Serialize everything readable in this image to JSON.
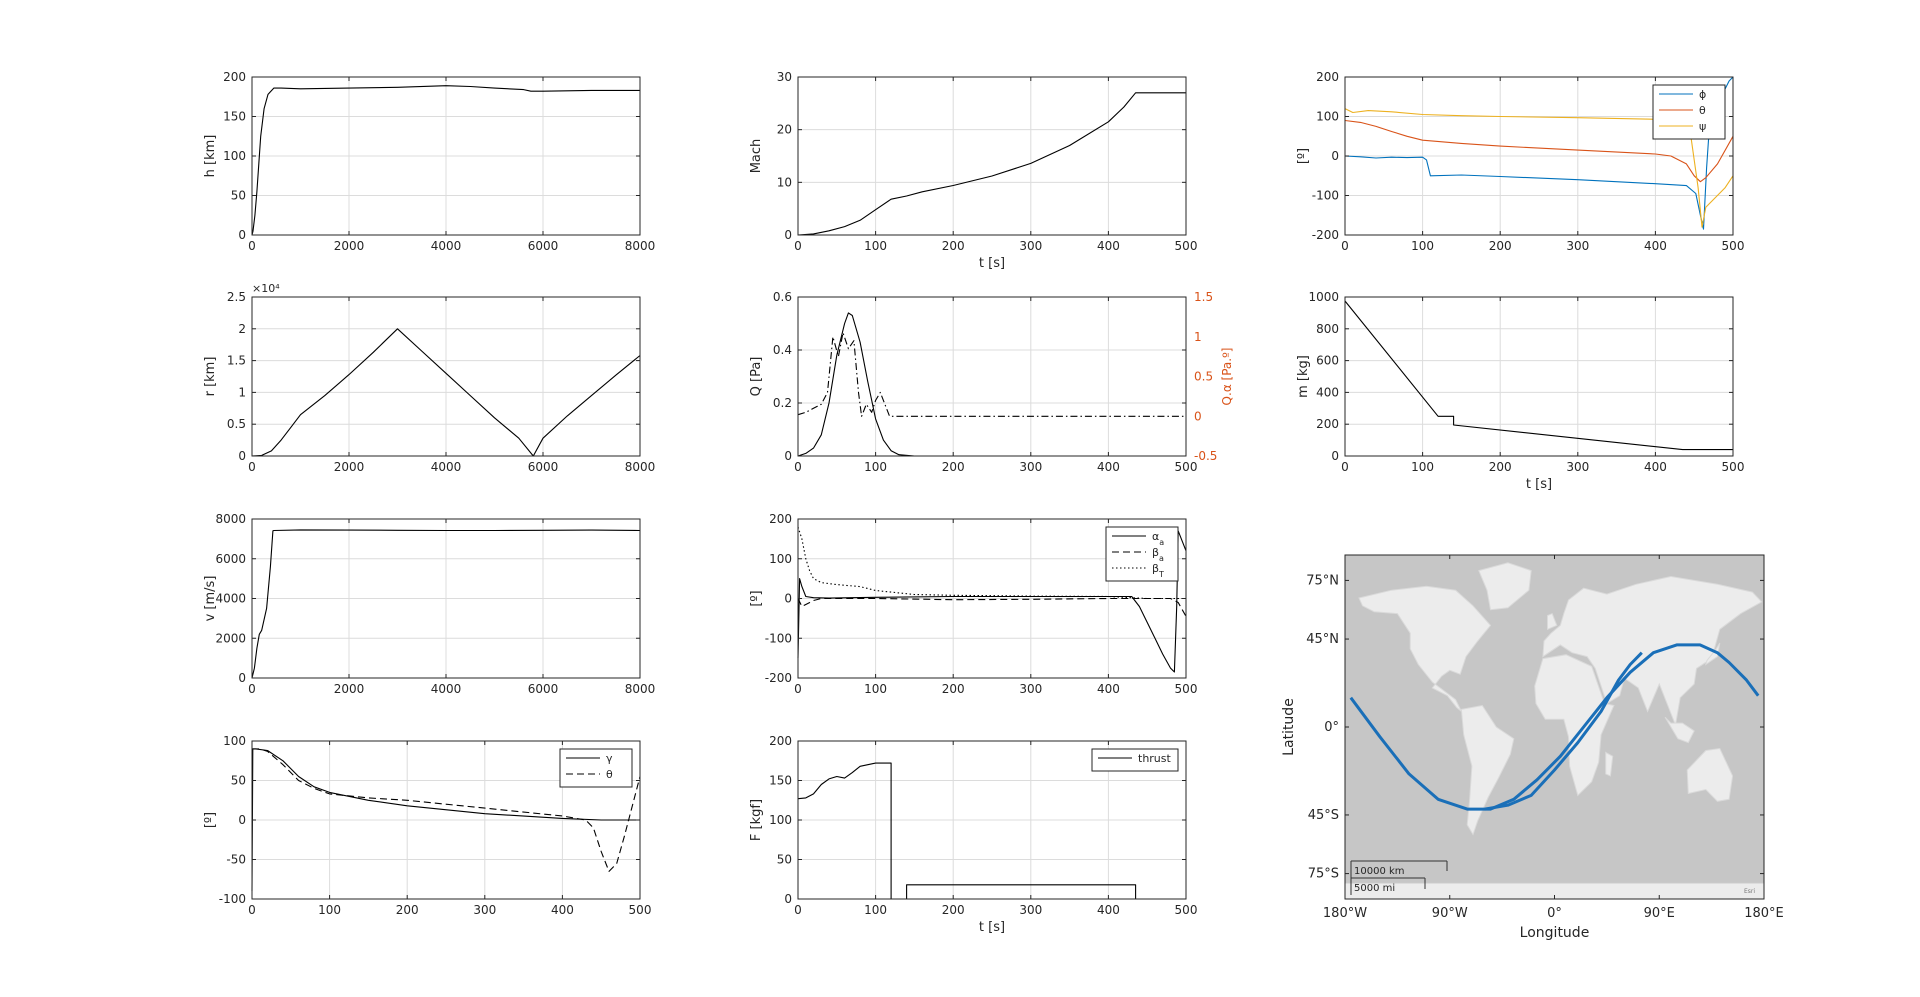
{
  "colors": {
    "axis": "#262626",
    "grid": "#dcdcdc",
    "line": "#000000",
    "blue": "#0072BD",
    "orange": "#D95319",
    "yellow": "#EDB120",
    "map_bg": "#c6c6c6",
    "map_land": "#ececec",
    "map_track": "#1a6fb8"
  },
  "chart_data": [
    {
      "id": "h",
      "type": "line",
      "ylabel": "h [km]",
      "xlabel": "",
      "xlim": [
        0,
        8000
      ],
      "ylim": [
        0,
        200
      ],
      "xticks": [
        0,
        2000,
        4000,
        6000,
        8000
      ],
      "yticks": [
        0,
        50,
        100,
        150,
        200
      ],
      "grid": true,
      "series": [
        {
          "style": "solid",
          "color": "#000000",
          "x": [
            0,
            20,
            60,
            100,
            140,
            180,
            250,
            330,
            450,
            600,
            1000,
            2000,
            3000,
            4000,
            4500,
            5000,
            5600,
            5750,
            6000,
            7000,
            8000
          ],
          "y": [
            0,
            5,
            25,
            55,
            90,
            125,
            160,
            178,
            186,
            186,
            185,
            186,
            187,
            189,
            188,
            186,
            184,
            182,
            182,
            183,
            183
          ]
        }
      ]
    },
    {
      "id": "mach",
      "type": "line",
      "ylabel": "Mach",
      "xlabel": "t [s]",
      "xlim": [
        0,
        500
      ],
      "ylim": [
        0,
        30
      ],
      "xticks": [
        0,
        100,
        200,
        300,
        400,
        500
      ],
      "yticks": [
        0,
        10,
        20,
        30
      ],
      "grid": true,
      "series": [
        {
          "style": "solid",
          "color": "#000000",
          "x": [
            0,
            20,
            40,
            60,
            80,
            100,
            120,
            140,
            160,
            200,
            250,
            300,
            350,
            400,
            420,
            435,
            440,
            500
          ],
          "y": [
            0,
            0.2,
            0.8,
            1.6,
            2.8,
            4.8,
            6.8,
            7.4,
            8.2,
            9.4,
            11.2,
            13.6,
            17,
            21.5,
            24.3,
            27,
            27,
            27
          ]
        }
      ]
    },
    {
      "id": "euler",
      "type": "line",
      "ylabel": "[º]",
      "xlabel": "",
      "xlim": [
        0,
        500
      ],
      "ylim": [
        -200,
        200
      ],
      "xticks": [
        0,
        100,
        200,
        300,
        400,
        500
      ],
      "yticks": [
        -200,
        -100,
        0,
        100,
        200
      ],
      "grid": true,
      "legend": {
        "position": "top-right",
        "entries": [
          "ϕ",
          "θ",
          "ψ"
        ]
      },
      "series": [
        {
          "name": "ϕ",
          "style": "solid",
          "color": "#0072BD",
          "x": [
            0,
            20,
            40,
            60,
            80,
            100,
            105,
            110,
            150,
            200,
            300,
            400,
            440,
            452,
            458,
            462,
            466,
            472,
            490,
            495,
            500
          ],
          "y": [
            0,
            -2,
            -5,
            -3,
            -4,
            -3,
            -10,
            -50,
            -48,
            -52,
            -60,
            -70,
            -75,
            -95,
            -150,
            -185,
            -30,
            145,
            170,
            190,
            200
          ]
        },
        {
          "name": "θ",
          "style": "solid",
          "color": "#D95319",
          "x": [
            0,
            20,
            40,
            60,
            80,
            100,
            150,
            200,
            300,
            400,
            420,
            440,
            450,
            458,
            465,
            480,
            500
          ],
          "y": [
            90,
            85,
            75,
            62,
            50,
            40,
            32,
            25,
            15,
            5,
            0,
            -20,
            -50,
            -65,
            -55,
            -20,
            50
          ]
        },
        {
          "name": "ψ",
          "style": "solid",
          "color": "#EDB120",
          "x": [
            0,
            10,
            30,
            60,
            100,
            150,
            200,
            300,
            400,
            430,
            445,
            455,
            460,
            465,
            475,
            490,
            500
          ],
          "y": [
            120,
            110,
            115,
            112,
            105,
            102,
            100,
            97,
            93,
            90,
            60,
            -80,
            -180,
            -130,
            -110,
            -80,
            -50
          ]
        }
      ]
    },
    {
      "id": "r",
      "type": "line",
      "ylabel": "r [km]",
      "xlabel": "",
      "exponent_label": "×10⁴",
      "xlim": [
        0,
        8000
      ],
      "ylim": [
        0,
        25000
      ],
      "xticks": [
        0,
        2000,
        4000,
        6000,
        8000
      ],
      "yticks": [
        0,
        5000,
        10000,
        15000,
        20000,
        25000
      ],
      "ytick_labels": [
        "0",
        "0.5",
        "1",
        "1.5",
        "2",
        "2.5"
      ],
      "grid": true,
      "series": [
        {
          "style": "solid",
          "color": "#000000",
          "x": [
            0,
            200,
            400,
            600,
            800,
            1000,
            1500,
            2000,
            2500,
            3000,
            3500,
            4000,
            4500,
            5000,
            5500,
            5800,
            6000,
            6500,
            7000,
            7500,
            8000
          ],
          "y": [
            0,
            100,
            800,
            2500,
            4500,
            6500,
            9500,
            12800,
            16300,
            20000,
            16500,
            13000,
            9500,
            6000,
            2800,
            0,
            2800,
            6300,
            9500,
            12700,
            15800
          ]
        }
      ]
    },
    {
      "id": "q",
      "type": "line",
      "ylabel": "Q [Pa]",
      "ylabel_right": "Q.α [Pa.º]",
      "xlabel": "",
      "xlim": [
        0,
        500
      ],
      "ylim": [
        0,
        0.6
      ],
      "ylim_right": [
        -0.5,
        1.5
      ],
      "xticks": [
        0,
        100,
        200,
        300,
        400,
        500
      ],
      "yticks": [
        0,
        0.2,
        0.4,
        0.6
      ],
      "yticks_right": [
        -0.5,
        0,
        0.5,
        1,
        1.5
      ],
      "grid": true,
      "series": [
        {
          "style": "solid",
          "axis": "left",
          "color": "#000000",
          "x": [
            0,
            10,
            20,
            30,
            40,
            50,
            60,
            65,
            70,
            80,
            90,
            100,
            110,
            120,
            130,
            150,
            500
          ],
          "y": [
            0,
            0.01,
            0.03,
            0.08,
            0.2,
            0.38,
            0.5,
            0.54,
            0.53,
            0.43,
            0.28,
            0.14,
            0.06,
            0.02,
            0.005,
            0,
            0
          ]
        },
        {
          "style": "dashdot",
          "axis": "right",
          "color": "#000000",
          "x": [
            0,
            10,
            20,
            30,
            38,
            45,
            52,
            58,
            65,
            72,
            78,
            82,
            88,
            95,
            100,
            106,
            112,
            118,
            125,
            500
          ],
          "y": [
            0.02,
            0.05,
            0.1,
            0.15,
            0.3,
            1.0,
            0.75,
            1.05,
            0.85,
            0.95,
            0.3,
            0.0,
            0.15,
            0.05,
            0.2,
            0.3,
            0.15,
            0.0,
            0.0,
            0.0
          ]
        }
      ]
    },
    {
      "id": "m",
      "type": "line",
      "ylabel": "m [kg]",
      "xlabel": "t [s]",
      "xlim": [
        0,
        500
      ],
      "ylim": [
        0,
        1000
      ],
      "xticks": [
        0,
        100,
        200,
        300,
        400,
        500
      ],
      "yticks": [
        0,
        200,
        400,
        600,
        800,
        1000
      ],
      "grid": true,
      "series": [
        {
          "style": "solid",
          "color": "#000000",
          "x": [
            0,
            120,
            140,
            140,
            435,
            440,
            500
          ],
          "y": [
            975,
            250,
            250,
            195,
            40,
            40,
            40
          ]
        }
      ]
    },
    {
      "id": "v",
      "type": "line",
      "ylabel": "v [m/s]",
      "xlabel": "",
      "xlim": [
        0,
        8000
      ],
      "ylim": [
        0,
        8000
      ],
      "xticks": [
        0,
        2000,
        4000,
        6000,
        8000
      ],
      "yticks": [
        0,
        2000,
        4000,
        6000,
        8000
      ],
      "grid": true,
      "series": [
        {
          "style": "solid",
          "color": "#000000",
          "x": [
            0,
            50,
            100,
            150,
            200,
            300,
            380,
            430,
            450,
            1000,
            2000,
            3000,
            4000,
            5000,
            6000,
            7000,
            8000
          ],
          "y": [
            0,
            500,
            1500,
            2200,
            2400,
            3500,
            5600,
            7400,
            7420,
            7450,
            7440,
            7430,
            7420,
            7420,
            7430,
            7440,
            7420
          ]
        }
      ]
    },
    {
      "id": "angles",
      "type": "line",
      "ylabel": "[º]",
      "xlabel": "",
      "xlim": [
        0,
        500
      ],
      "ylim": [
        -200,
        200
      ],
      "xticks": [
        0,
        100,
        200,
        300,
        400,
        500
      ],
      "yticks": [
        -200,
        -100,
        0,
        100,
        200
      ],
      "grid": true,
      "legend": {
        "position": "top-right",
        "entries": [
          "αa",
          "βa",
          "βT"
        ]
      },
      "series": [
        {
          "name": "αa",
          "style": "solid",
          "color": "#000000",
          "x": [
            0,
            2,
            5,
            10,
            20,
            40,
            100,
            200,
            300,
            400,
            430,
            440,
            450,
            460,
            470,
            480,
            485,
            488,
            490,
            500
          ],
          "y": [
            -150,
            50,
            30,
            5,
            2,
            1,
            3,
            5,
            5,
            5,
            5,
            -20,
            -60,
            -100,
            -140,
            -175,
            -185,
            -20,
            170,
            120
          ]
        },
        {
          "name": "βa",
          "style": "dashed",
          "color": "#000000",
          "x": [
            0,
            5,
            10,
            20,
            30,
            100,
            200,
            300,
            400,
            430,
            440,
            450,
            460,
            480,
            490,
            500
          ],
          "y": [
            0,
            -20,
            -15,
            -5,
            0,
            0,
            -3,
            -2,
            0,
            0,
            0,
            0,
            0,
            0,
            -10,
            -45
          ]
        },
        {
          "name": "βT",
          "style": "dotted",
          "color": "#000000",
          "x": [
            0,
            5,
            10,
            15,
            20,
            30,
            50,
            80,
            100,
            150,
            200,
            300,
            400,
            450,
            500
          ],
          "y": [
            180,
            150,
            100,
            70,
            50,
            40,
            35,
            30,
            20,
            10,
            8,
            6,
            5,
            0,
            0
          ]
        }
      ]
    },
    {
      "id": "gamma",
      "type": "line",
      "ylabel": "[º]",
      "xlabel": "",
      "xlim": [
        0,
        500
      ],
      "ylim": [
        -100,
        100
      ],
      "xticks": [
        0,
        100,
        200,
        300,
        400,
        500
      ],
      "yticks": [
        -100,
        -50,
        0,
        50,
        100
      ],
      "grid": true,
      "legend": {
        "position": "top-right",
        "entries": [
          "γ",
          "θ"
        ]
      },
      "series": [
        {
          "name": "γ",
          "style": "solid",
          "color": "#000000",
          "x": [
            0,
            1,
            5,
            20,
            40,
            60,
            80,
            100,
            150,
            200,
            300,
            400,
            450,
            500
          ],
          "y": [
            -90,
            90,
            90,
            88,
            75,
            55,
            42,
            35,
            25,
            18,
            8,
            2,
            0,
            0
          ]
        },
        {
          "name": "θ",
          "style": "dashed",
          "color": "#000000",
          "x": [
            0,
            10,
            20,
            40,
            60,
            80,
            100,
            150,
            200,
            300,
            400,
            430,
            440,
            450,
            460,
            470,
            480,
            500
          ],
          "y": [
            90,
            90,
            87,
            70,
            50,
            40,
            33,
            28,
            25,
            15,
            5,
            0,
            -10,
            -40,
            -65,
            -55,
            -20,
            55
          ]
        }
      ]
    },
    {
      "id": "thrust",
      "type": "line",
      "ylabel": "F [kgf]",
      "xlabel": "t [s]",
      "xlim": [
        0,
        500
      ],
      "ylim": [
        0,
        200
      ],
      "xticks": [
        0,
        100,
        200,
        300,
        400,
        500
      ],
      "yticks": [
        0,
        50,
        100,
        150,
        200
      ],
      "grid": true,
      "legend": {
        "position": "top-right",
        "entries": [
          "thrust"
        ]
      },
      "series": [
        {
          "name": "thrust",
          "style": "solid",
          "color": "#000000",
          "x": [
            0,
            10,
            20,
            30,
            40,
            50,
            60,
            70,
            80,
            90,
            100,
            110,
            120,
            120,
            140,
            140,
            435,
            435,
            440
          ],
          "y": [
            127,
            128,
            133,
            145,
            152,
            155,
            153,
            160,
            168,
            170,
            172,
            172,
            172,
            0,
            0,
            18,
            18,
            0,
            0
          ]
        }
      ]
    },
    {
      "id": "map",
      "type": "line",
      "xlabel": "Longitude",
      "ylabel": "Latitude",
      "xlim": [
        -180,
        180
      ],
      "ylim": [
        -88,
        88
      ],
      "xtick_labels": [
        "180°W",
        "90°W",
        "0°",
        "90°E",
        "180°E"
      ],
      "xticks": [
        -180,
        -90,
        0,
        90,
        180
      ],
      "ytick_labels": [
        "75°N",
        "45°N",
        "0°",
        "45°S",
        "75°S"
      ],
      "yticks": [
        75,
        45,
        0,
        -45,
        -75
      ],
      "scalebar": {
        "top": "10000 km",
        "bottom": "5000 mi"
      },
      "attribution": "Esri",
      "series": [
        {
          "name": "ground track 1",
          "style": "solid",
          "color": "#1a6fb8",
          "x": [
            -175,
            -150,
            -125,
            -100,
            -75,
            -55,
            -35,
            -15,
            5,
            25,
            45,
            65,
            85,
            105,
            125,
            140,
            150,
            165,
            175
          ],
          "y": [
            15,
            -5,
            -24,
            -37,
            -42,
            -42,
            -37,
            -27,
            -15,
            0,
            15,
            28,
            38,
            42,
            42,
            38,
            33,
            24,
            16
          ]
        },
        {
          "name": "ground track 2",
          "style": "solid",
          "color": "#1a6fb8",
          "x": [
            -60,
            -40,
            -20,
            0,
            20,
            40,
            55,
            65,
            75
          ],
          "y": [
            -42,
            -40,
            -35,
            -22,
            -8,
            8,
            24,
            32,
            38
          ]
        }
      ]
    }
  ]
}
